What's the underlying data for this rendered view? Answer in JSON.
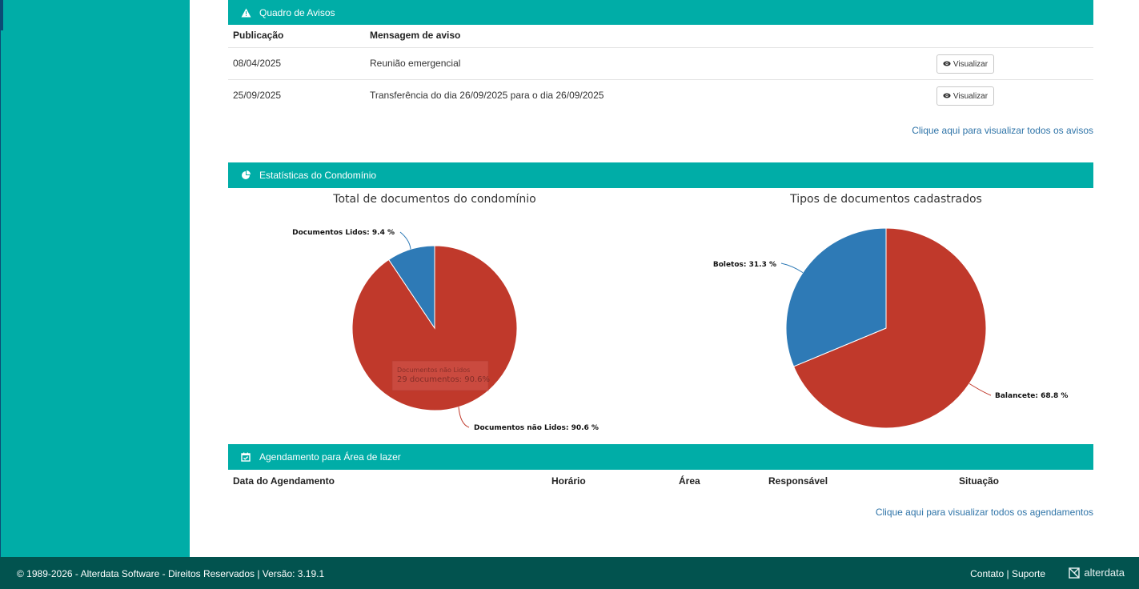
{
  "notices": {
    "title": "Quadro de Avisos",
    "col_date": "Publicação",
    "col_message": "Mensagem de aviso",
    "rows": [
      {
        "date": "08/04/2025",
        "message": "Reunião emergencial",
        "action": "Visualizar"
      },
      {
        "date": "25/09/2025",
        "message": "Transferência do dia 26/09/2025 para o dia 26/09/2025",
        "action": "Visualizar"
      }
    ],
    "view_all": "Clique aqui para visualizar todos os avisos"
  },
  "stats": {
    "title": "Estatísticas do Condomínio",
    "tooltip": {
      "line1": "Documentos não Lidos",
      "line2": "29 documentos: 90.6%"
    }
  },
  "chart_data": [
    {
      "type": "pie",
      "title": "Total de documentos do condomínio",
      "slices": [
        {
          "name": "Documentos não Lidos",
          "value": 90.6,
          "label": "Documentos não Lidos: 90.6 %",
          "color": "#c0392b"
        },
        {
          "name": "Documentos Lidos",
          "value": 9.4,
          "label": "Documentos Lidos: 9.4 %",
          "color": "#2e7ab6"
        }
      ]
    },
    {
      "type": "pie",
      "title": "Tipos de documentos cadastrados",
      "slices": [
        {
          "name": "Balancete",
          "value": 68.8,
          "label": "Balancete: 68.8 %",
          "color": "#c0392b"
        },
        {
          "name": "Boletos",
          "value": 31.3,
          "label": "Boletos: 31.3 %",
          "color": "#2e7ab6"
        }
      ]
    }
  ],
  "schedule": {
    "title": "Agendamento para Área de lazer",
    "columns": [
      "Data do Agendamento",
      "Horário",
      "Área",
      "Responsável",
      "Situação"
    ],
    "view_all": "Clique aqui para visualizar todos os agendamentos"
  },
  "footer": {
    "copyright": "© 1989-2026 - Alterdata Software - Direitos Reservados | Versão: 3.19.1",
    "contact": "Contato",
    "separator": "|",
    "support": "Suporte",
    "logo": "alterdata"
  },
  "colors": {
    "accent": "#00ada7",
    "footer": "#02534f",
    "red": "#c0392b",
    "blue": "#2e7ab6",
    "link": "#2f74a8"
  }
}
